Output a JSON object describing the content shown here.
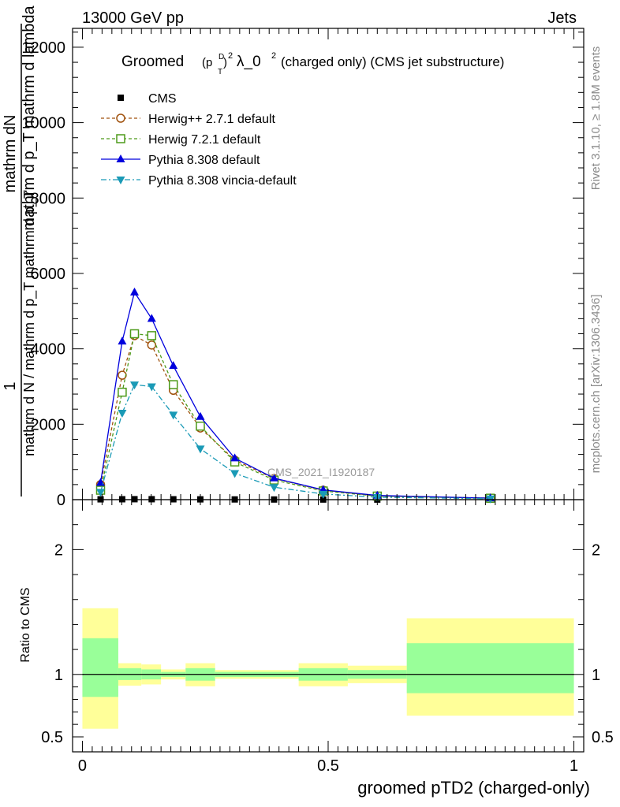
{
  "header": {
    "left": "13000 GeV pp",
    "right": "Jets"
  },
  "side_labels": {
    "rivet": "Rivet 3.1.10, ≥ 1.8M events",
    "mcplots": "mcplots.cern.ch [arXiv:1306.3436]"
  },
  "colors": {
    "cms": "#000000",
    "herwigpp": "#a0520e",
    "herwig7": "#4d9a1a",
    "pythia": "#0000dd",
    "vincia": "#1a9ab6",
    "band_outer": "#ffff99",
    "band_inner": "#99ff99"
  },
  "chart_data": [
    {
      "type": "line",
      "title": "Groomed (p_T^D)^2 λ_0^2 (charged only) (CMS jet substructure)",
      "title_parts": {
        "word": "Groomed",
        "p": "(p",
        "p_sup": "D",
        "p_sub": "T",
        "close": ")",
        "exp1": "2",
        "lambda": "λ_0",
        "exp2": "2",
        "rest": "(charged only) (CMS jet substructure)"
      },
      "ylabel_parts": [
        "mathrm d N / mathrm d p_T mathrm d p_T",
        "mathrm dN",
        "1",
        "mathrm d p_T mathrm d lambda"
      ],
      "xlim": [
        -0.02,
        1.02
      ],
      "ylim": [
        0,
        12500
      ],
      "yticks": [
        0,
        2000,
        4000,
        6000,
        8000,
        10000,
        12000
      ],
      "ytick_labels": [
        "0",
        "2000",
        "4000",
        "6000",
        "8000",
        "10000",
        "12000"
      ],
      "watermark": "CMS_2021_I1920187",
      "x": [
        0.037,
        0.081,
        0.106,
        0.141,
        0.185,
        0.24,
        0.31,
        0.39,
        0.49,
        0.6,
        0.83
      ],
      "series": [
        {
          "name": "CMS",
          "key": "cms",
          "marker": "square",
          "values": [
            9,
            11,
            12,
            12,
            10,
            8,
            6,
            4,
            3,
            2,
            1
          ]
        },
        {
          "name": "Herwig++ 2.7.1 default",
          "key": "herwigpp",
          "marker": "circle",
          "values": [
            400,
            3300,
            4350,
            4100,
            2900,
            1900,
            1050,
            560,
            250,
            100,
            40
          ]
        },
        {
          "name": "Herwig 7.2.1 default",
          "key": "herwig7",
          "marker": "square-open",
          "values": [
            250,
            2850,
            4400,
            4350,
            3050,
            1950,
            1000,
            520,
            230,
            95,
            38
          ]
        },
        {
          "name": "Pythia 8.308 default",
          "key": "pythia",
          "marker": "triangle-up",
          "values": [
            450,
            4200,
            5500,
            4800,
            3550,
            2200,
            1100,
            570,
            260,
            110,
            40
          ]
        },
        {
          "name": "Pythia 8.308 vincia-default",
          "key": "vincia",
          "marker": "triangle-down",
          "values": [
            200,
            2300,
            3050,
            3000,
            2250,
            1350,
            700,
            330,
            150,
            65,
            25
          ]
        }
      ]
    },
    {
      "type": "area",
      "ylabel": "Ratio to CMS",
      "xlabel": "groomed pTD2 (charged-only)",
      "xlim": [
        -0.02,
        1.02
      ],
      "ylim": [
        0.38,
        2.4
      ],
      "xticks": [
        0,
        0.5,
        1
      ],
      "xtick_labels": [
        "0",
        "0.5",
        "1"
      ],
      "yticks": [
        0.5,
        1,
        2
      ],
      "ytick_labels": [
        "0.5",
        "1",
        "2"
      ],
      "reference": 1,
      "bins": [
        {
          "lo": 0.0,
          "hi": 0.073,
          "outer": [
            0.565,
            1.53
          ],
          "inner": [
            0.82,
            1.29
          ]
        },
        {
          "lo": 0.073,
          "hi": 0.12,
          "outer": [
            0.91,
            1.09
          ],
          "inner": [
            0.955,
            1.05
          ]
        },
        {
          "lo": 0.12,
          "hi": 0.16,
          "outer": [
            0.92,
            1.08
          ],
          "inner": [
            0.96,
            1.04
          ]
        },
        {
          "lo": 0.16,
          "hi": 0.21,
          "outer": [
            0.96,
            1.04
          ],
          "inner": [
            0.98,
            1.02
          ]
        },
        {
          "lo": 0.21,
          "hi": 0.27,
          "outer": [
            0.905,
            1.09
          ],
          "inner": [
            0.95,
            1.05
          ]
        },
        {
          "lo": 0.27,
          "hi": 0.44,
          "outer": [
            0.965,
            1.035
          ],
          "inner": [
            0.98,
            1.02
          ]
        },
        {
          "lo": 0.44,
          "hi": 0.54,
          "outer": [
            0.905,
            1.09
          ],
          "inner": [
            0.95,
            1.05
          ]
        },
        {
          "lo": 0.54,
          "hi": 0.66,
          "outer": [
            0.93,
            1.07
          ],
          "inner": [
            0.965,
            1.035
          ]
        },
        {
          "lo": 0.66,
          "hi": 1.0,
          "outer": [
            0.67,
            1.45
          ],
          "inner": [
            0.85,
            1.25
          ]
        }
      ]
    }
  ]
}
